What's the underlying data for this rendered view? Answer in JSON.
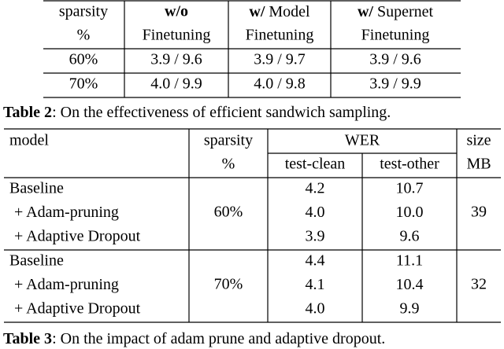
{
  "table2": {
    "header": [
      {
        "line1": "sparsity",
        "line2": "%"
      },
      {
        "bold": "w/o",
        "line2": "Finetuning"
      },
      {
        "bold": "w/",
        "line1": "Model",
        "line2": "Finetuning"
      },
      {
        "bold": "w/",
        "line1": "Supernet",
        "line2": "Finetuning"
      }
    ],
    "rows": [
      [
        "60%",
        "3.9 / 9.6",
        "3.9 / 9.7",
        "3.9 / 9.6"
      ],
      [
        "70%",
        "4.0 / 9.9",
        "4.0 / 9.8",
        "3.9 / 9.9"
      ]
    ],
    "caption": {
      "label": "Table 2",
      "text": ": On the effectiveness of efficient sandwich sampling."
    }
  },
  "table3": {
    "header": {
      "model": "model",
      "sparsity": [
        "sparsity",
        "%"
      ],
      "wer": "WER",
      "wer_cols": [
        "test-clean",
        "test-other"
      ],
      "size": [
        "size",
        "MB"
      ]
    },
    "groups": [
      {
        "sparsity": "60%",
        "size": "39",
        "rows": [
          [
            "Baseline",
            "4.2",
            "10.7"
          ],
          [
            "+ Adam-pruning",
            "4.0",
            "10.0"
          ],
          [
            "+ Adaptive Dropout",
            "3.9",
            "9.6"
          ]
        ]
      },
      {
        "sparsity": "70%",
        "size": "32",
        "rows": [
          [
            "Baseline",
            "4.4",
            "11.1"
          ],
          [
            "+ Adam-pruning",
            "4.1",
            "10.4"
          ],
          [
            "+ Adaptive Dropout",
            "4.0",
            "9.9"
          ]
        ]
      }
    ],
    "caption": {
      "label": "Table 3",
      "text": ": On the impact of adam prune and adaptive dropout."
    }
  }
}
